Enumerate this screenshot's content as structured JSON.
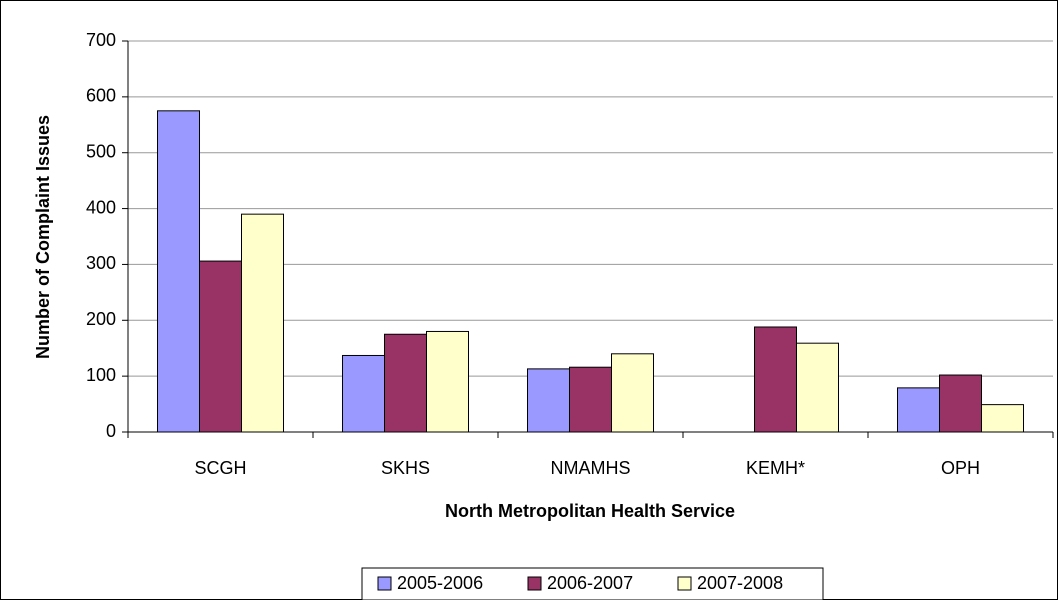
{
  "chart_data": {
    "type": "bar",
    "x_label": "North Metropolitan Health Service",
    "y_label": "Number of Complaint Issues",
    "categories": [
      "SCGH",
      "SKHS",
      "NMAMHS",
      "KEMH*",
      "OPH"
    ],
    "series": [
      {
        "name": "2005-2006",
        "color": "#9999ff",
        "values": [
          575,
          137,
          113,
          null,
          79
        ]
      },
      {
        "name": "2006-2007",
        "color": "#993366",
        "values": [
          306,
          175,
          116,
          188,
          102
        ]
      },
      {
        "name": "2007-2008",
        "color": "#ffffcc",
        "values": [
          390,
          180,
          140,
          159,
          49
        ]
      }
    ],
    "ylim": [
      0,
      700
    ],
    "yticks": [
      0,
      100,
      200,
      300,
      400,
      500,
      600,
      700
    ],
    "grid": true,
    "legend": "bottom"
  }
}
